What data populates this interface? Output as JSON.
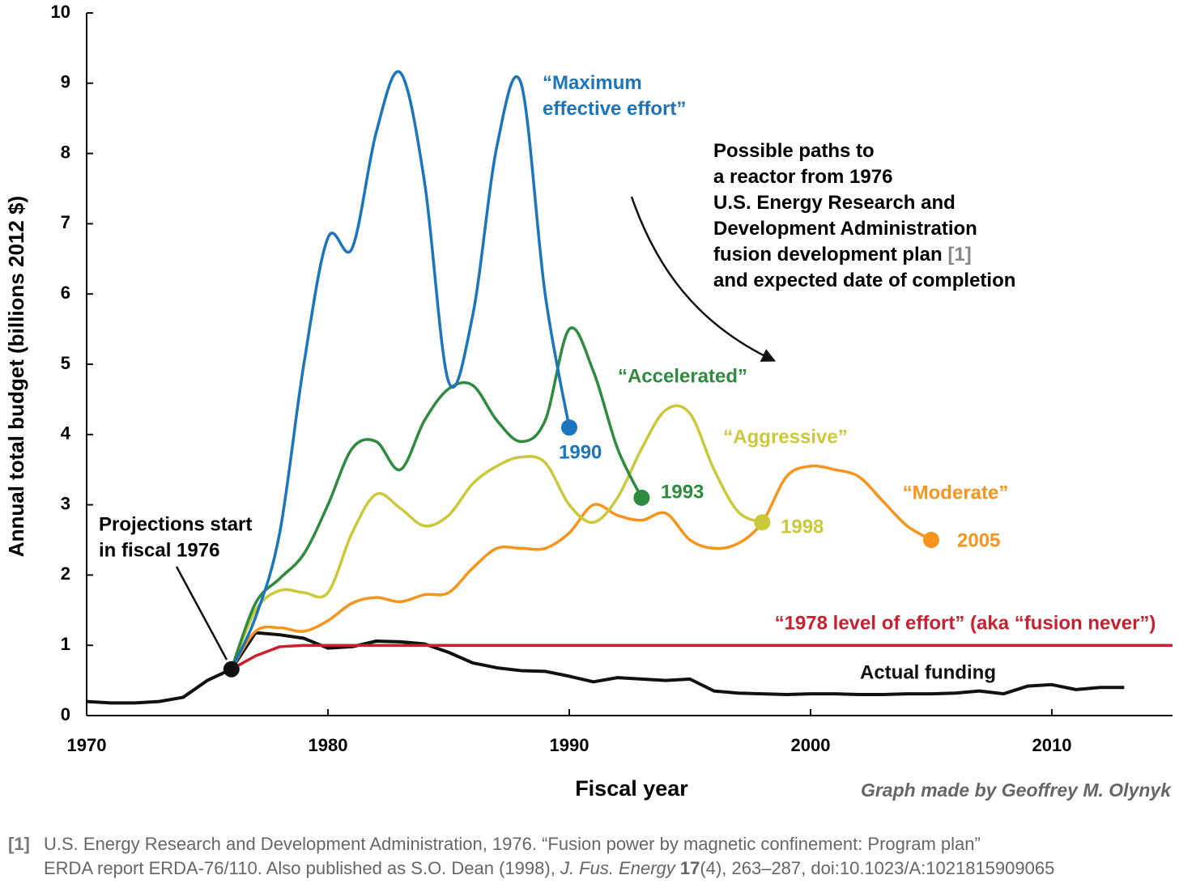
{
  "chart_data": {
    "type": "line",
    "ylabel": "Annual total budget (billions 2012 $)",
    "xlabel": "Fiscal year",
    "xlim": [
      1970,
      2015
    ],
    "xticks": [
      1970,
      1980,
      1990,
      2000,
      2010
    ],
    "ylim": [
      0,
      10
    ],
    "yticks": [
      0,
      1,
      2,
      3,
      4,
      5,
      6,
      7,
      8,
      9,
      10
    ],
    "series": [
      {
        "name": "Actual funding",
        "color": "#111111",
        "x": [
          1970,
          1971,
          1972,
          1973,
          1974,
          1975,
          1976,
          1977,
          1978,
          1979,
          1980,
          1981,
          1982,
          1983,
          1984,
          1985,
          1986,
          1987,
          1988,
          1989,
          1990,
          1991,
          1992,
          1993,
          1994,
          1995,
          1996,
          1997,
          1998,
          1999,
          2000,
          2001,
          2002,
          2003,
          2004,
          2005,
          2006,
          2007,
          2008,
          2009,
          2010,
          2011,
          2012,
          2013
        ],
        "values": [
          0.2,
          0.18,
          0.18,
          0.2,
          0.26,
          0.5,
          0.66,
          1.18,
          1.15,
          1.1,
          0.96,
          0.98,
          1.06,
          1.05,
          1.02,
          0.9,
          0.75,
          0.68,
          0.64,
          0.63,
          0.56,
          0.48,
          0.54,
          0.52,
          0.5,
          0.52,
          0.35,
          0.32,
          0.31,
          0.3,
          0.31,
          0.31,
          0.3,
          0.3,
          0.31,
          0.31,
          0.32,
          0.35,
          0.31,
          0.42,
          0.44,
          0.37,
          0.4,
          0.4
        ]
      },
      {
        "name": "“1978 level of effort” (aka “fusion never”)",
        "color": "#c8202f",
        "x": [
          1976,
          1977,
          1978,
          1979,
          2015
        ],
        "values": [
          0.66,
          0.85,
          0.98,
          1.0,
          1.0
        ]
      },
      {
        "name": "“Moderate”",
        "color": "#f7941d",
        "end_label": "2005",
        "x": [
          1976,
          1977,
          1978,
          1979,
          1980,
          1981,
          1982,
          1983,
          1984,
          1985,
          1986,
          1987,
          1988,
          1989,
          1990,
          1991,
          1992,
          1993,
          1994,
          1995,
          1996,
          1997,
          1998,
          1999,
          2000,
          2001,
          2002,
          2003,
          2004,
          2005
        ],
        "values": [
          0.66,
          1.2,
          1.25,
          1.2,
          1.35,
          1.6,
          1.68,
          1.62,
          1.72,
          1.75,
          2.1,
          2.38,
          2.38,
          2.38,
          2.6,
          3.0,
          2.85,
          2.78,
          2.88,
          2.5,
          2.38,
          2.45,
          2.75,
          3.4,
          3.55,
          3.5,
          3.4,
          3.05,
          2.7,
          2.5
        ]
      },
      {
        "name": "“Aggressive”",
        "color": "#c9c93a",
        "end_label": "1998",
        "x": [
          1976,
          1977,
          1978,
          1979,
          1980,
          1981,
          1982,
          1983,
          1984,
          1985,
          1986,
          1987,
          1988,
          1989,
          1990,
          1991,
          1992,
          1993,
          1994,
          1995,
          1996,
          1997,
          1998
        ],
        "values": [
          0.66,
          1.5,
          1.78,
          1.75,
          1.75,
          2.6,
          3.15,
          2.95,
          2.7,
          2.85,
          3.3,
          3.55,
          3.68,
          3.6,
          3.0,
          2.75,
          3.1,
          3.8,
          4.35,
          4.3,
          3.5,
          2.9,
          2.75
        ]
      },
      {
        "name": "“Accelerated”",
        "color": "#2e8b3e",
        "end_label": "1993",
        "x": [
          1976,
          1977,
          1978,
          1979,
          1980,
          1981,
          1982,
          1983,
          1984,
          1985,
          1986,
          1987,
          1988,
          1989,
          1990,
          1991,
          1992,
          1993
        ],
        "values": [
          0.66,
          1.6,
          1.95,
          2.3,
          3.0,
          3.8,
          3.9,
          3.5,
          4.2,
          4.65,
          4.7,
          4.2,
          3.9,
          4.2,
          5.5,
          4.9,
          3.8,
          3.1
        ]
      },
      {
        "name": "“Maximum effective effort”",
        "color": "#1b75bc",
        "end_label": "1990",
        "x": [
          1976,
          1977,
          1978,
          1979,
          1980,
          1981,
          1982,
          1983,
          1984,
          1985,
          1986,
          1987,
          1988,
          1989,
          1990
        ],
        "values": [
          0.66,
          1.4,
          2.6,
          5.0,
          6.8,
          6.65,
          8.3,
          9.15,
          7.6,
          4.75,
          5.7,
          8.1,
          9.0,
          6.0,
          4.1
        ]
      }
    ],
    "annotations": {
      "projections": [
        "Projections start",
        "in fiscal 1976"
      ],
      "paths": [
        "Possible paths to",
        "a reactor from 1976",
        "U.S. Energy Research and",
        "Development Administration",
        "fusion development plan ",
        "and expected date of completion"
      ],
      "paths_ref": "[1]",
      "credit": "Graph made by Geoffrey M. Olynyk"
    },
    "footnote": {
      "ref": "[1]",
      "line1": "U.S. Energy Research and Development Administration, 1976. “Fusion power by magnetic confinement: Program plan”",
      "line2a": "ERDA report ERDA-76/110. Also published as S.O. Dean (1998), ",
      "journal": "J. Fus. Energy",
      "volume": "17",
      "line2b": "(4), 263–287, doi:10.1023/A:1021815909065"
    }
  }
}
